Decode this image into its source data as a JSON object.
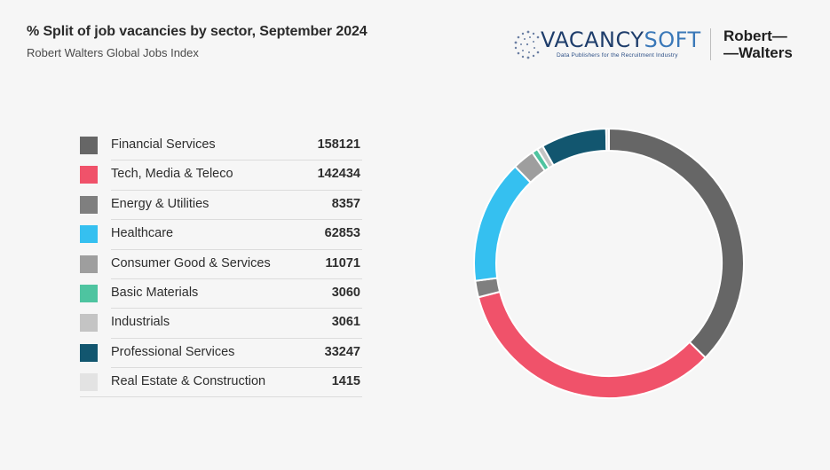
{
  "header": {
    "title": "% Split of job vacancies by sector, September 2024",
    "subtitle": "Robert Walters Global Jobs Index"
  },
  "logos": {
    "vacancysoft_a": "VACANCY",
    "vacancysoft_b": "SOFT",
    "vacancysoft_tagline": "Data Publishers for the Recruitment Industry",
    "robert_walters_line1": "Robert—",
    "robert_walters_line2": "—Walters"
  },
  "chart_data": {
    "type": "donut",
    "categories": [
      "Financial Services",
      "Tech, Media & Teleco",
      "Energy & Utilities",
      "Healthcare",
      "Consumer Good & Services",
      "Basic Materials",
      "Industrials",
      "Professional Services",
      "Real Estate & Construction"
    ],
    "values": [
      158121,
      142434,
      8357,
      62853,
      11071,
      3060,
      3061,
      33247,
      1415
    ],
    "colors": [
      "#666666",
      "#f0526a",
      "#7f7f7f",
      "#35c0f0",
      "#9e9e9e",
      "#4ec4a0",
      "#c4c4c4",
      "#12566f",
      "#e3e3e3"
    ],
    "legend_position": "left"
  }
}
